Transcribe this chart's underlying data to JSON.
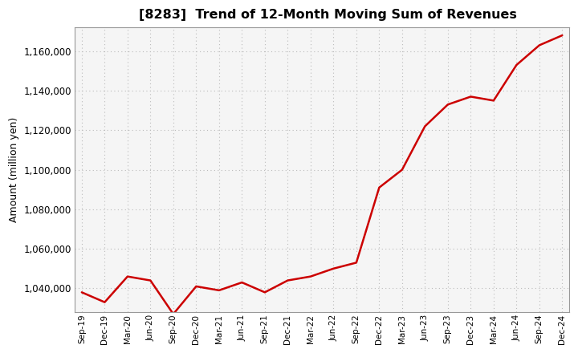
{
  "title": "[8283]  Trend of 12-Month Moving Sum of Revenues",
  "ylabel": "Amount (million yen)",
  "line_color": "#cc0000",
  "background_color": "#ffffff",
  "plot_bg_color": "#f5f5f5",
  "grid_color": "#bbbbbb",
  "ylim": [
    1028000,
    1172000
  ],
  "yticks": [
    1040000,
    1060000,
    1080000,
    1100000,
    1120000,
    1140000,
    1160000
  ],
  "x_labels": [
    "Sep-19",
    "Dec-19",
    "Mar-20",
    "Jun-20",
    "Sep-20",
    "Dec-20",
    "Mar-21",
    "Jun-21",
    "Sep-21",
    "Dec-21",
    "Mar-22",
    "Jun-22",
    "Sep-22",
    "Dec-22",
    "Mar-23",
    "Jun-23",
    "Sep-23",
    "Dec-23",
    "Mar-24",
    "Jun-24",
    "Sep-24",
    "Dec-24"
  ],
  "values": [
    1038000,
    1033000,
    1046000,
    1044000,
    1027000,
    1041000,
    1039000,
    1043000,
    1038000,
    1044000,
    1046000,
    1050000,
    1053000,
    1091000,
    1100000,
    1122000,
    1133000,
    1137000,
    1135000,
    1153000,
    1163000,
    1168000
  ]
}
